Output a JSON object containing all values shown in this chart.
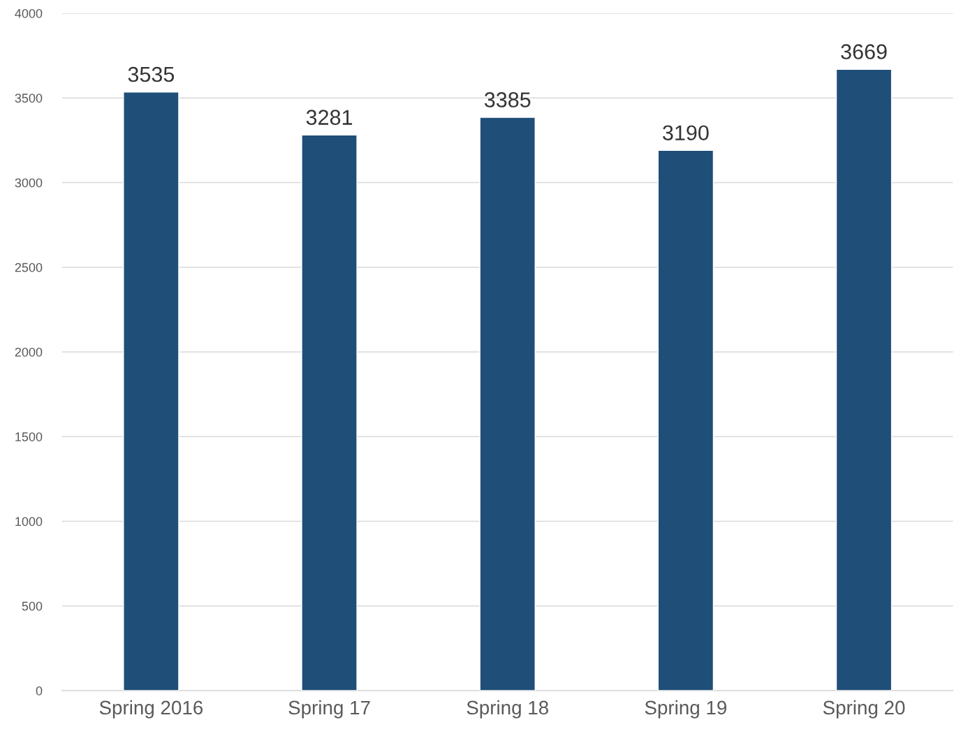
{
  "chart_data": {
    "type": "bar",
    "categories": [
      "Spring 2016",
      "Spring 17",
      "Spring 18",
      "Spring 19",
      "Spring 20"
    ],
    "values": [
      3535,
      3281,
      3385,
      3190,
      3669
    ],
    "color": "#1f4e79",
    "ylim": [
      0,
      4000
    ],
    "yticks": [
      0,
      500,
      1000,
      1500,
      2000,
      2500,
      3000,
      3500,
      4000
    ],
    "grid": "y",
    "data_labels": true
  }
}
